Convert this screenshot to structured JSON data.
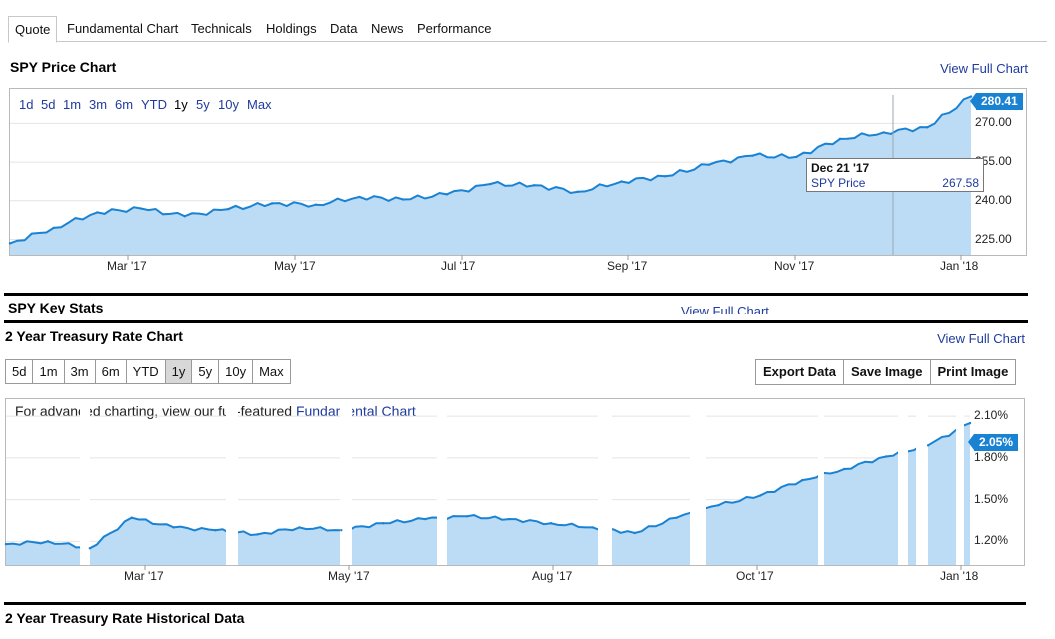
{
  "tabs": [
    {
      "label": "Quote",
      "active": true
    },
    {
      "label": "Fundamental Chart",
      "active": false
    },
    {
      "label": "Technicals",
      "active": false
    },
    {
      "label": "Holdings",
      "active": false
    },
    {
      "label": "Data",
      "active": false
    },
    {
      "label": "News",
      "active": false
    },
    {
      "label": "Performance",
      "active": false
    }
  ],
  "price_chart": {
    "title": "SPY Price Chart",
    "view_full": "View Full Chart",
    "ranges": [
      "1d",
      "5d",
      "1m",
      "3m",
      "6m",
      "YTD",
      "1y",
      "5y",
      "10y",
      "Max"
    ],
    "active_range": "1y",
    "last_value": "280.41",
    "tooltip": {
      "date": "Dec 21 '17",
      "series": "SPY Price",
      "value": "267.58"
    },
    "fill_color": "#bcdcf5",
    "line_color": "#1a82d3"
  },
  "faded": {
    "key_stats": "SPY Key Stats",
    "view_full": "View Full Chart"
  },
  "treasury_chart": {
    "title": "2 Year Treasury Rate Chart",
    "view_full": "View Full Chart",
    "ranges": [
      "5d",
      "1m",
      "3m",
      "6m",
      "YTD",
      "1y",
      "5y",
      "10y",
      "Max"
    ],
    "active_range": "1y",
    "actions": [
      "Export Data",
      "Save Image",
      "Print Image"
    ],
    "advanced_prefix": "For advanced charting, view our full-featured",
    "advanced_link": "Fundamental Chart",
    "last_value": "2.05%"
  },
  "historical_title": "2 Year Treasury Rate Historical Data",
  "chart_data": [
    {
      "type": "area",
      "title": "SPY Price Chart",
      "x_tick_labels": [
        "Mar '17",
        "May '17",
        "Jul '17",
        "Sep '17",
        "Nov '17",
        "Jan '18"
      ],
      "y_tick_labels": [
        "225.00",
        "240.00",
        "255.00",
        "270.00"
      ],
      "ylim": [
        219,
        281
      ],
      "x": [
        "Feb '17",
        "Mar '17",
        "Mar '17",
        "Apr '17",
        "Apr '17",
        "May '17",
        "May '17",
        "Jun '17",
        "Jun '17",
        "Jul '17",
        "Jul '17",
        "Aug '17",
        "Aug '17",
        "Sep '17",
        "Sep '17",
        "Oct '17",
        "Oct '17",
        "Nov '17",
        "Nov '17",
        "Dec '17",
        "Dec '17",
        "Jan '18",
        "Jan '18"
      ],
      "series": [
        {
          "name": "SPY Price",
          "values": [
            223.5,
            229.5,
            235.5,
            237,
            234,
            236.8,
            239,
            238.5,
            241.5,
            240.5,
            242.5,
            246.5,
            246,
            243.5,
            247.5,
            249.5,
            254,
            257.5,
            257,
            264,
            266.5,
            268.5,
            280.41
          ]
        }
      ]
    },
    {
      "type": "area",
      "title": "2 Year Treasury Rate Chart",
      "x_tick_labels": [
        "Mar '17",
        "May '17",
        "Aug '17",
        "Oct '17",
        "Jan '18"
      ],
      "y_tick_labels": [
        "1.20%",
        "1.50%",
        "1.80%",
        "2.10%"
      ],
      "ylim": [
        1.03,
        2.18
      ],
      "x": [
        "Jan '17",
        "Feb '17",
        "Feb '17",
        "Mar '17",
        "Mar '17",
        "Apr '17",
        "Apr '17",
        "May '17",
        "May '17",
        "Jun '17",
        "Jun '17",
        "Jul '17",
        "Jul '17",
        "Aug '17",
        "Aug '17",
        "Sep '17",
        "Sep '17",
        "Oct '17",
        "Oct '17",
        "Nov '17",
        "Nov '17",
        "Dec '17",
        "Dec '17",
        "Jan '18"
      ],
      "series": [
        {
          "name": "2 Year Treasury Rate",
          "values": [
            1.18,
            1.2,
            1.15,
            1.37,
            1.3,
            1.28,
            1.25,
            1.3,
            1.28,
            1.33,
            1.36,
            1.38,
            1.36,
            1.33,
            1.3,
            1.26,
            1.37,
            1.46,
            1.53,
            1.64,
            1.72,
            1.81,
            1.89,
            2.05
          ]
        }
      ]
    }
  ]
}
